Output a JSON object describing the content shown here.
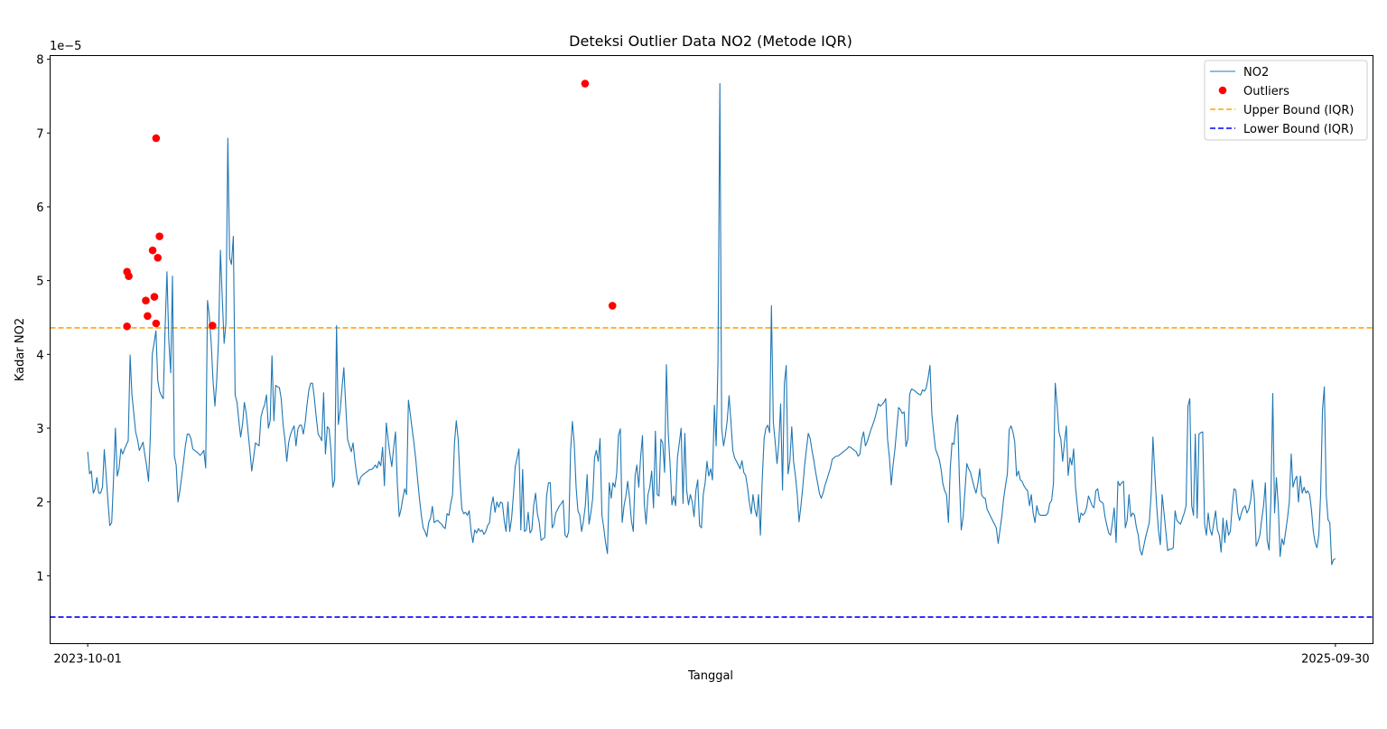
{
  "chart_data": {
    "type": "line",
    "title": "Deteksi Outlier Data NO2 (Metode IQR)",
    "xlabel": "Tanggal",
    "ylabel": "Kadar NO2",
    "y_offset_label": "1e−5",
    "y_scale_factor": 1e-05,
    "xlim": [
      "2023-09-09",
      "2025-10-22"
    ],
    "ylim": [
      8e-07,
      8.05e-05
    ],
    "x_ticks": [
      "2023-10-01",
      "2025-09-30"
    ],
    "y_ticks": [
      1,
      2,
      3,
      4,
      5,
      6,
      7,
      8
    ],
    "grid": false,
    "legend_position": "top-right",
    "colors": {
      "line": "#1f77b4",
      "outlier": "#ff0000",
      "upper": "#ffa500",
      "lower": "#0000ff"
    },
    "upper_bound": 4.36e-05,
    "lower_bound": 4.4e-06,
    "series": [
      {
        "name": "NO2",
        "x_start": "2023-10-01",
        "x_end": "2025-09-30",
        "values": [
          2.68,
          2.38,
          2.42,
          2.12,
          2.18,
          2.33,
          2.12,
          2.12,
          2.2,
          2.71,
          2.35,
          2.0,
          1.68,
          1.72,
          2.3,
          3.0,
          2.35,
          2.45,
          2.72,
          2.65,
          2.72,
          2.78,
          2.83,
          3.99,
          3.45,
          3.2,
          2.95,
          2.85,
          2.7,
          2.75,
          2.81,
          2.64,
          2.48,
          2.28,
          2.9,
          4.0,
          4.15,
          4.32,
          3.65,
          3.5,
          3.44,
          3.4,
          4.38,
          5.12,
          4.2,
          3.75,
          5.06,
          2.62,
          2.5,
          2.0,
          2.15,
          2.34,
          2.55,
          2.76,
          2.92,
          2.92,
          2.86,
          2.72,
          2.7,
          2.68,
          2.66,
          2.63,
          2.66,
          2.7,
          2.46,
          4.73,
          4.52,
          4.15,
          3.65,
          3.3,
          3.65,
          4.2,
          5.41,
          4.78,
          4.15,
          4.42,
          6.93,
          5.31,
          5.22,
          5.6,
          3.45,
          3.35,
          3.1,
          2.88,
          3.05,
          3.35,
          3.2,
          2.95,
          2.7,
          2.42,
          2.6,
          2.8,
          2.78,
          2.76,
          3.15,
          3.25,
          3.32,
          3.45,
          3.0,
          3.1,
          3.98,
          3.1,
          3.58,
          3.56,
          3.55,
          3.4,
          3.05,
          2.85,
          2.55,
          2.8,
          2.91,
          2.98,
          3.03,
          2.76,
          2.98,
          3.04,
          3.04,
          2.92,
          3.08,
          3.32,
          3.52,
          3.61,
          3.61,
          3.4,
          3.15,
          2.92,
          2.88,
          2.83,
          3.48,
          2.65,
          3.02,
          2.99,
          2.7,
          2.2,
          2.3,
          4.39,
          3.05,
          3.25,
          3.55,
          3.82,
          3.3,
          2.85,
          2.76,
          2.68,
          2.8,
          2.55,
          2.36,
          2.23,
          2.33,
          2.36,
          2.38,
          2.4,
          2.42,
          2.44,
          2.44,
          2.46,
          2.5,
          2.46,
          2.55,
          2.49,
          2.74,
          2.22,
          3.07,
          2.85,
          2.64,
          2.48,
          2.73,
          2.95,
          2.25,
          1.8,
          1.9,
          2.05,
          2.18,
          2.1,
          3.38,
          3.2,
          3.0,
          2.8,
          2.58,
          2.3,
          2.05,
          1.82,
          1.65,
          1.6,
          1.53,
          1.72,
          1.78,
          1.94,
          1.72,
          1.74,
          1.75,
          1.72,
          1.7,
          1.66,
          1.64,
          1.84,
          1.82,
          1.98,
          2.1,
          2.8,
          3.1,
          2.85,
          2.3,
          1.9,
          1.84,
          1.86,
          1.82,
          1.88,
          1.6,
          1.45,
          1.62,
          1.58,
          1.64,
          1.6,
          1.62,
          1.56,
          1.6,
          1.68,
          1.72,
          1.95,
          2.07,
          1.86,
          2.0,
          1.93,
          2.0,
          1.98,
          1.75,
          1.6,
          2.0,
          1.6,
          1.78,
          2.1,
          2.48,
          2.6,
          2.72,
          1.62,
          2.44,
          1.6,
          1.62,
          1.86,
          1.58,
          1.62,
          1.95,
          2.12,
          1.84,
          1.72,
          1.48,
          1.5,
          1.52,
          2.08,
          2.26,
          2.26,
          1.65,
          1.7,
          1.85,
          1.9,
          1.95,
          1.98,
          2.02,
          1.55,
          1.52,
          1.6,
          2.7,
          3.09,
          2.8,
          2.2,
          1.88,
          1.82,
          1.6,
          1.75,
          1.95,
          2.37,
          1.7,
          1.85,
          2.05,
          2.6,
          2.7,
          2.55,
          2.86,
          1.82,
          1.65,
          1.45,
          1.3,
          2.26,
          2.05,
          2.26,
          2.2,
          2.38,
          2.9,
          2.99,
          1.72,
          1.95,
          2.08,
          2.28,
          2.05,
          1.75,
          1.6,
          2.35,
          2.5,
          2.2,
          2.6,
          2.9,
          1.98,
          1.7,
          2.1,
          2.2,
          2.42,
          1.92,
          2.96,
          2.1,
          2.08,
          2.85,
          2.8,
          2.4,
          3.86,
          2.94,
          2.5,
          1.96,
          2.08,
          1.95,
          2.6,
          2.8,
          3.0,
          1.98,
          2.93,
          2.16,
          1.96,
          2.1,
          2.0,
          1.8,
          2.16,
          2.3,
          1.68,
          1.65,
          2.1,
          2.26,
          2.55,
          2.35,
          2.45,
          2.3,
          3.31,
          2.76,
          3.9,
          7.67,
          3.0,
          2.76,
          2.9,
          3.1,
          3.44,
          3.1,
          2.7,
          2.6,
          2.55,
          2.5,
          2.45,
          2.56,
          2.4,
          2.36,
          2.2,
          2.0,
          1.84,
          2.1,
          1.9,
          1.8,
          2.1,
          1.55,
          2.3,
          2.86,
          3.0,
          3.04,
          2.94,
          4.66,
          3.08,
          2.82,
          2.52,
          2.8,
          3.33,
          2.16,
          3.6,
          3.85,
          2.38,
          2.55,
          3.02,
          2.55,
          2.35,
          2.1,
          1.73,
          1.95,
          2.2,
          2.5,
          2.72,
          2.93,
          2.86,
          2.7,
          2.56,
          2.4,
          2.26,
          2.12,
          2.05,
          2.12,
          2.22,
          2.3,
          2.38,
          2.46,
          2.58,
          2.6,
          2.62,
          2.62,
          2.64,
          2.66,
          2.68,
          2.7,
          2.72,
          2.75,
          2.74,
          2.72,
          2.7,
          2.68,
          2.62,
          2.65,
          2.85,
          2.95,
          2.76,
          2.82,
          2.9,
          2.98,
          3.05,
          3.12,
          3.22,
          3.33,
          3.3,
          3.32,
          3.35,
          3.4,
          2.85,
          2.6,
          2.23,
          2.5,
          2.72,
          3.0,
          3.28,
          3.25,
          3.2,
          3.22,
          2.75,
          2.85,
          3.46,
          3.53,
          3.52,
          3.5,
          3.48,
          3.46,
          3.45,
          3.52,
          3.5,
          3.55,
          3.68,
          3.85,
          3.2,
          2.95,
          2.72,
          2.65,
          2.58,
          2.45,
          2.25,
          2.15,
          2.1,
          1.72,
          2.45,
          2.8,
          2.78,
          3.05,
          3.18,
          2.3,
          1.62,
          1.8,
          2.15,
          2.52,
          2.45,
          2.4,
          2.3,
          2.2,
          2.12,
          2.25,
          2.45,
          2.1,
          2.06,
          2.05,
          1.9,
          1.85,
          1.8,
          1.75,
          1.7,
          1.65,
          1.44,
          1.62,
          1.8,
          2.05,
          2.22,
          2.38,
          2.98,
          3.03,
          2.95,
          2.82,
          2.35,
          2.42,
          2.3,
          2.28,
          2.22,
          2.18,
          2.15,
          1.95,
          2.1,
          1.85,
          1.72,
          1.95,
          1.84,
          1.82,
          1.82,
          1.82,
          1.82,
          1.85,
          1.98,
          2.02,
          2.25,
          3.61,
          3.3,
          2.95,
          2.85,
          2.55,
          2.8,
          3.03,
          2.36,
          2.6,
          2.5,
          2.72,
          2.2,
          1.95,
          1.72,
          1.85,
          1.82,
          1.85,
          1.92,
          2.08,
          2.02,
          1.95,
          1.92,
          2.15,
          2.18,
          2.02,
          2.0,
          1.98,
          1.8,
          1.68,
          1.58,
          1.55,
          1.72,
          1.92,
          1.45,
          2.28,
          2.22,
          2.26,
          2.28,
          1.65,
          1.75,
          2.1,
          1.8,
          1.85,
          1.82,
          1.66,
          1.55,
          1.35,
          1.28,
          1.4,
          1.52,
          1.62,
          1.72,
          2.1,
          2.88,
          2.4,
          1.95,
          1.62,
          1.42,
          2.1,
          1.85,
          1.6,
          1.34,
          1.36,
          1.36,
          1.38,
          1.88,
          1.75,
          1.72,
          1.7,
          1.78,
          1.85,
          1.95,
          3.3,
          3.4,
          1.95,
          1.82,
          2.92,
          1.78,
          2.92,
          2.94,
          2.95,
          1.7,
          1.55,
          1.85,
          1.62,
          1.55,
          1.72,
          1.88,
          1.62,
          1.55,
          1.32,
          1.78,
          1.45,
          1.75,
          1.55,
          1.6,
          1.95,
          2.18,
          2.16,
          1.85,
          1.75,
          1.85,
          1.92,
          1.95,
          1.85,
          1.9,
          2.02,
          2.3,
          2.05,
          1.4,
          1.46,
          1.55,
          1.76,
          1.95,
          2.26,
          1.48,
          1.35,
          2.02,
          3.47,
          1.85,
          2.33,
          1.95,
          1.26,
          1.5,
          1.42,
          1.6,
          1.78,
          2.0,
          2.65,
          2.2,
          2.3,
          2.35,
          2.0,
          2.35,
          2.12,
          2.2,
          2.12,
          2.15,
          2.1,
          1.9,
          1.6,
          1.45,
          1.38,
          1.55,
          2.1,
          3.25,
          3.56,
          2.1,
          1.76,
          1.72,
          1.15,
          1.22,
          1.23
        ]
      },
      {
        "name": "Outliers",
        "points": [
          {
            "x": "2023-10-24",
            "y": 4.38
          },
          {
            "x": "2023-10-24",
            "y": 5.12
          },
          {
            "x": "2023-10-25",
            "y": 5.06
          },
          {
            "x": "2023-11-04",
            "y": 4.73
          },
          {
            "x": "2023-11-05",
            "y": 4.52
          },
          {
            "x": "2023-11-08",
            "y": 5.41
          },
          {
            "x": "2023-11-09",
            "y": 4.78
          },
          {
            "x": "2023-11-10",
            "y": 4.42
          },
          {
            "x": "2023-11-10",
            "y": 6.93
          },
          {
            "x": "2023-11-11",
            "y": 5.31
          },
          {
            "x": "2023-11-12",
            "y": 5.6
          },
          {
            "x": "2023-12-13",
            "y": 4.39
          },
          {
            "x": "2024-07-18",
            "y": 7.67
          },
          {
            "x": "2024-08-03",
            "y": 4.66
          }
        ]
      }
    ],
    "legend": [
      "NO2",
      "Outliers",
      "Upper Bound (IQR)",
      "Lower Bound (IQR)"
    ]
  }
}
